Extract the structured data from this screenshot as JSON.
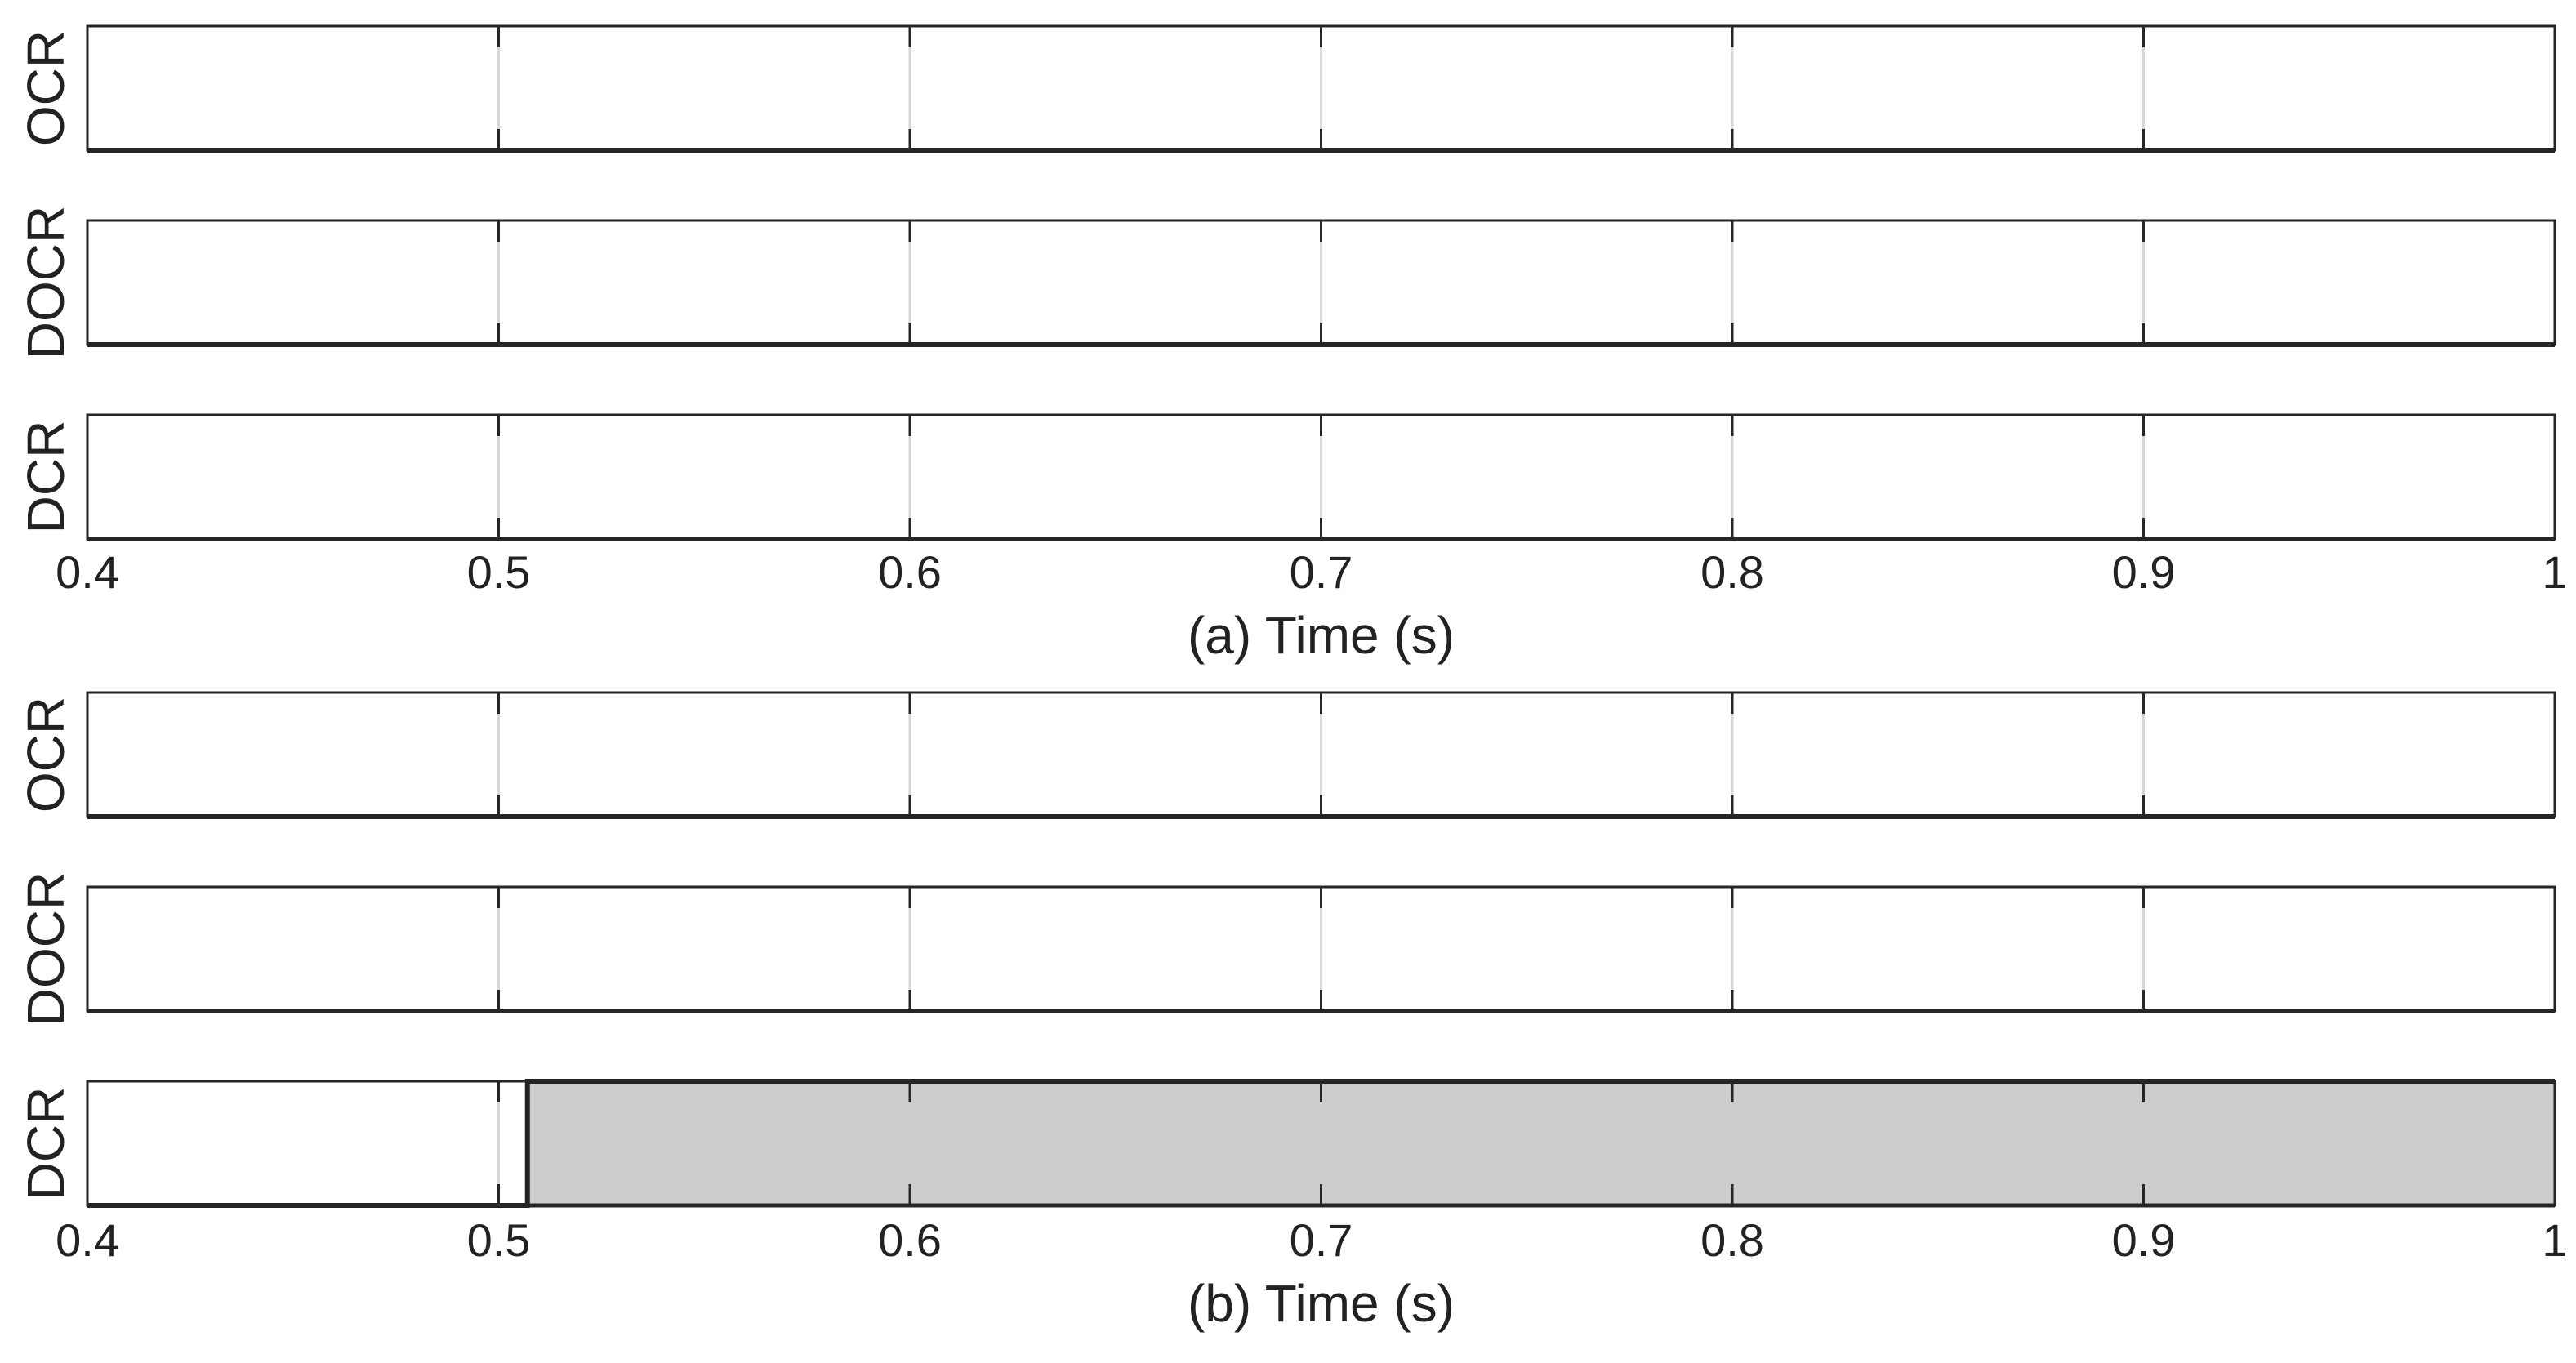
{
  "chart_data": [
    {
      "type": "area",
      "xlabel": "(a) Time (s)",
      "xlim": [
        0.4,
        1.0
      ],
      "ylim": [
        0,
        1
      ],
      "ticks": [
        0.4,
        0.5,
        0.6,
        0.7,
        0.8,
        0.9,
        1.0
      ],
      "tick_labels": [
        "0.4",
        "0.5",
        "0.6",
        "0.7",
        "0.8",
        "0.9",
        "1"
      ],
      "grid": true,
      "fill_color": "#cccccc",
      "series": [
        {
          "name": "OCR",
          "x": [
            0.4,
            1.0
          ],
          "y": [
            0,
            0
          ]
        },
        {
          "name": "DOCR",
          "x": [
            0.4,
            1.0
          ],
          "y": [
            0,
            0
          ]
        },
        {
          "name": "DCR",
          "x": [
            0.4,
            1.0
          ],
          "y": [
            0,
            0
          ]
        }
      ]
    },
    {
      "type": "area",
      "xlabel": "(b) Time (s)",
      "xlim": [
        0.4,
        1.0
      ],
      "ylim": [
        0,
        1
      ],
      "ticks": [
        0.4,
        0.5,
        0.6,
        0.7,
        0.8,
        0.9,
        1.0
      ],
      "tick_labels": [
        "0.4",
        "0.5",
        "0.6",
        "0.7",
        "0.8",
        "0.9",
        "1"
      ],
      "grid": true,
      "fill_color": "#cccccc",
      "series": [
        {
          "name": "OCR",
          "x": [
            0.4,
            1.0
          ],
          "y": [
            0,
            0
          ]
        },
        {
          "name": "DOCR",
          "x": [
            0.4,
            1.0
          ],
          "y": [
            0,
            0
          ]
        },
        {
          "name": "DCR",
          "x": [
            0.4,
            0.507,
            0.507,
            1.0
          ],
          "y": [
            0,
            0,
            1,
            1
          ]
        }
      ]
    }
  ]
}
